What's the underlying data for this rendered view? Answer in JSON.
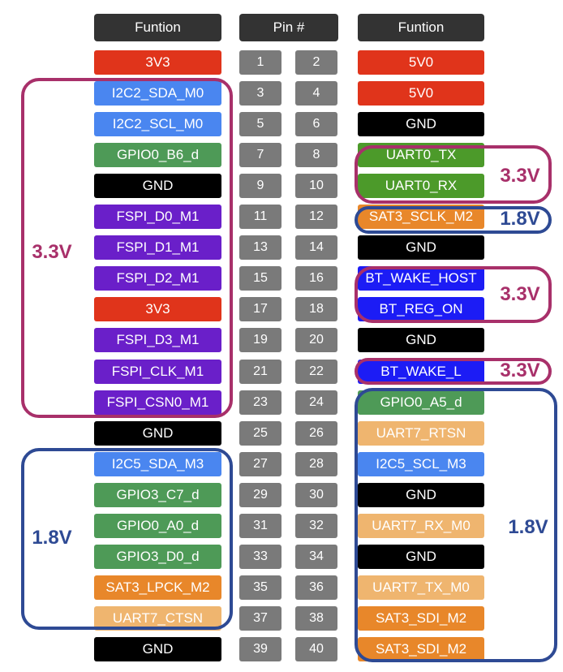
{
  "header": {
    "left": "Funtion",
    "pins": "Pin #",
    "right": "Funtion"
  },
  "rows": [
    {
      "left": "3V3",
      "left_color": "#e0341b",
      "pin_left": 1,
      "pin_right": 2,
      "right": "5V0",
      "right_color": "#e0341b"
    },
    {
      "left": "I2C2_SDA_M0",
      "left_color": "#4a86f0",
      "pin_left": 3,
      "pin_right": 4,
      "right": "5V0",
      "right_color": "#e0341b"
    },
    {
      "left": "I2C2_SCL_M0",
      "left_color": "#4a86f0",
      "pin_left": 5,
      "pin_right": 6,
      "right": "GND",
      "right_color": "#000000"
    },
    {
      "left": "GPIO0_B6_d",
      "left_color": "#4e9a57",
      "pin_left": 7,
      "pin_right": 8,
      "right": "UART0_TX",
      "right_color": "#4c9a2a"
    },
    {
      "left": "GND",
      "left_color": "#000000",
      "pin_left": 9,
      "pin_right": 10,
      "right": "UART0_RX",
      "right_color": "#4c9a2a"
    },
    {
      "left": "FSPI_D0_M1",
      "left_color": "#6a1fc9",
      "pin_left": 11,
      "pin_right": 12,
      "right": "SAT3_SCLK_M2",
      "right_color": "#e8872a"
    },
    {
      "left": "FSPI_D1_M1",
      "left_color": "#6a1fc9",
      "pin_left": 13,
      "pin_right": 14,
      "right": "GND",
      "right_color": "#000000"
    },
    {
      "left": "FSPI_D2_M1",
      "left_color": "#6a1fc9",
      "pin_left": 15,
      "pin_right": 16,
      "right": "BT_WAKE_HOST",
      "right_color": "#1c1cf5"
    },
    {
      "left": "3V3",
      "left_color": "#e0341b",
      "pin_left": 17,
      "pin_right": 18,
      "right": "BT_REG_ON",
      "right_color": "#1c1cf5"
    },
    {
      "left": "FSPI_D3_M1",
      "left_color": "#6a1fc9",
      "pin_left": 19,
      "pin_right": 20,
      "right": "GND",
      "right_color": "#000000"
    },
    {
      "left": "FSPI_CLK_M1",
      "left_color": "#6a1fc9",
      "pin_left": 21,
      "pin_right": 22,
      "right": "BT_WAKE_L",
      "right_color": "#1c1cf5"
    },
    {
      "left": "FSPI_CSN0_M1",
      "left_color": "#6a1fc9",
      "pin_left": 23,
      "pin_right": 24,
      "right": "GPIO0_A5_d",
      "right_color": "#4e9a57"
    },
    {
      "left": "GND",
      "left_color": "#000000",
      "pin_left": 25,
      "pin_right": 26,
      "right": "UART7_RTSN",
      "right_color": "#efb56f"
    },
    {
      "left": "I2C5_SDA_M3",
      "left_color": "#4a86f0",
      "pin_left": 27,
      "pin_right": 28,
      "right": "I2C5_SCL_M3",
      "right_color": "#4a86f0"
    },
    {
      "left": "GPIO3_C7_d",
      "left_color": "#4e9a57",
      "pin_left": 29,
      "pin_right": 30,
      "right": "GND",
      "right_color": "#000000"
    },
    {
      "left": "GPIO0_A0_d",
      "left_color": "#4e9a57",
      "pin_left": 31,
      "pin_right": 32,
      "right": "UART7_RX_M0",
      "right_color": "#efb56f"
    },
    {
      "left": "GPIO3_D0_d",
      "left_color": "#4e9a57",
      "pin_left": 33,
      "pin_right": 34,
      "right": "GND",
      "right_color": "#000000"
    },
    {
      "left": "SAT3_LPCK_M2",
      "left_color": "#e8872a",
      "pin_left": 35,
      "pin_right": 36,
      "right": "UART7_TX_M0",
      "right_color": "#efb56f"
    },
    {
      "left": "UART7_CTSN",
      "left_color": "#efb56f",
      "pin_left": 37,
      "pin_right": 38,
      "right": "SAT3_SDI_M2",
      "right_color": "#e8872a"
    },
    {
      "left": "GND",
      "left_color": "#000000",
      "pin_left": 39,
      "pin_right": 40,
      "right": "SAT3_SDI_M2",
      "right_color": "#e8872a"
    }
  ],
  "annotations": [
    {
      "label": "3.3V",
      "color": "#a8306a"
    },
    {
      "label": "1.8V",
      "color": "#2e4a94"
    },
    {
      "label": "3.3V",
      "color": "#a8306a"
    },
    {
      "label": "1.8V",
      "color": "#2e4a94"
    },
    {
      "label": "3.3V",
      "color": "#a8306a"
    },
    {
      "label": "3.3V",
      "color": "#a8306a"
    },
    {
      "label": "1.8V",
      "color": "#2e4a94"
    }
  ]
}
